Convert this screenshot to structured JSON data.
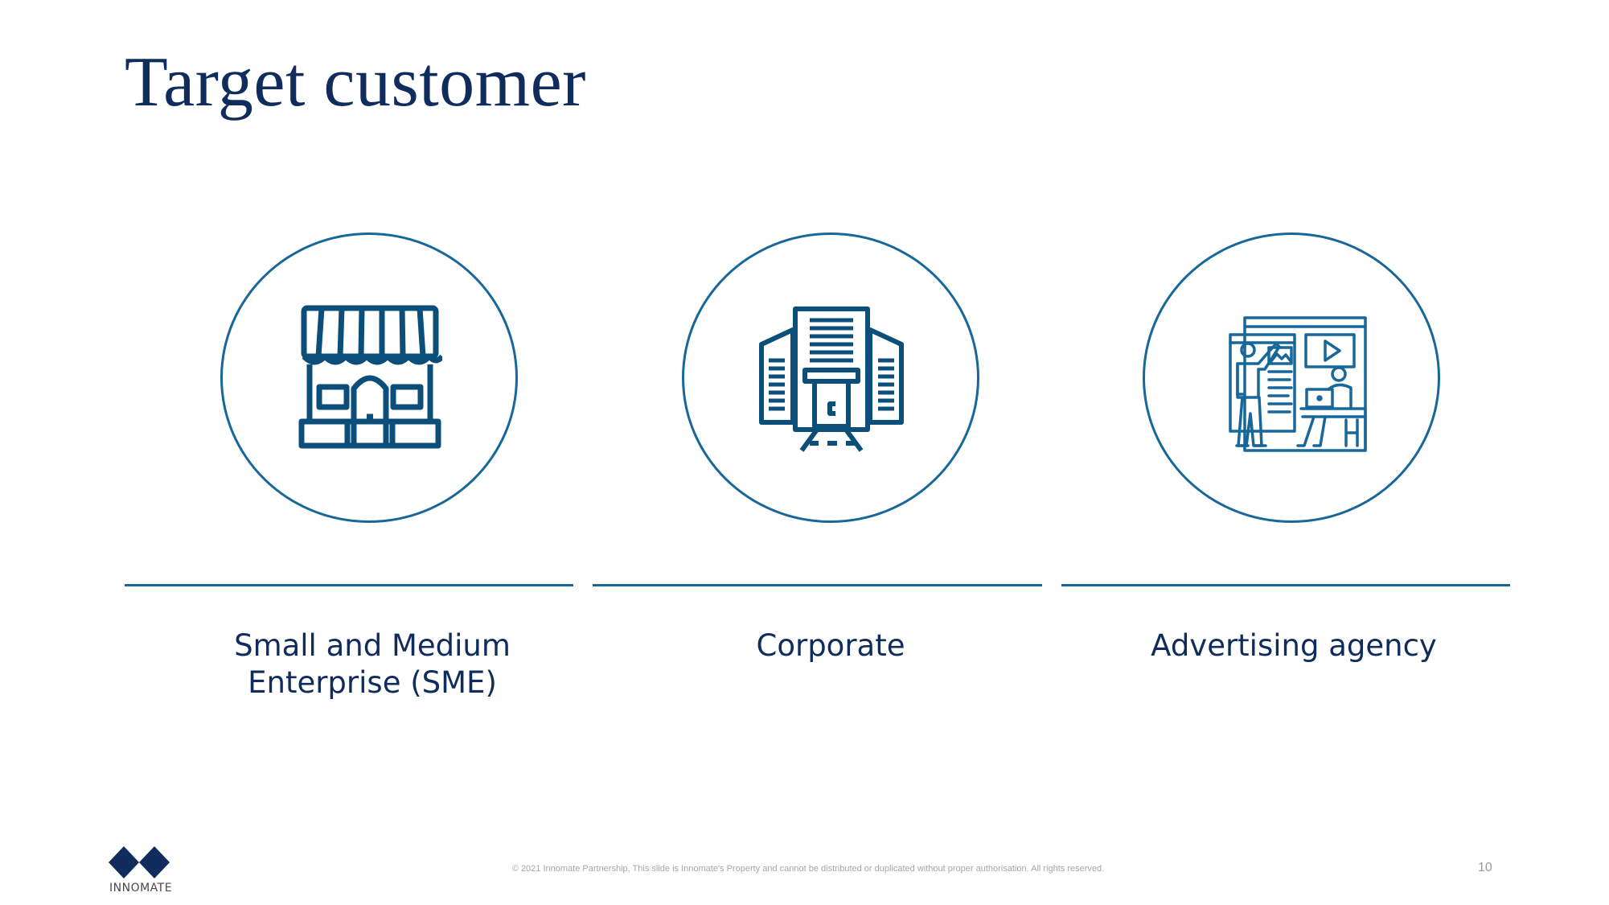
{
  "slide": {
    "title": "Target customer",
    "segments": [
      {
        "icon": "storefront-icon",
        "label_line1": "Small and Medium",
        "label_line2": "Enterprise (SME)"
      },
      {
        "icon": "office-building-icon",
        "label_line1": "Corporate",
        "label_line2": ""
      },
      {
        "icon": "digital-marketing-team-icon",
        "label_line1": "Advertising agency",
        "label_line2": ""
      }
    ]
  },
  "footer": {
    "logo_text": "INNOMATE",
    "copyright": "© 2021 Innomate Partnership, This slide is Innomate's Property and cannot be distributed or duplicated without proper authorisation. All rights reserved.",
    "page_number": "10"
  },
  "colors": {
    "title": "#0f2c5c",
    "accent": "#17679a",
    "footer_text": "#a6a6a6"
  }
}
